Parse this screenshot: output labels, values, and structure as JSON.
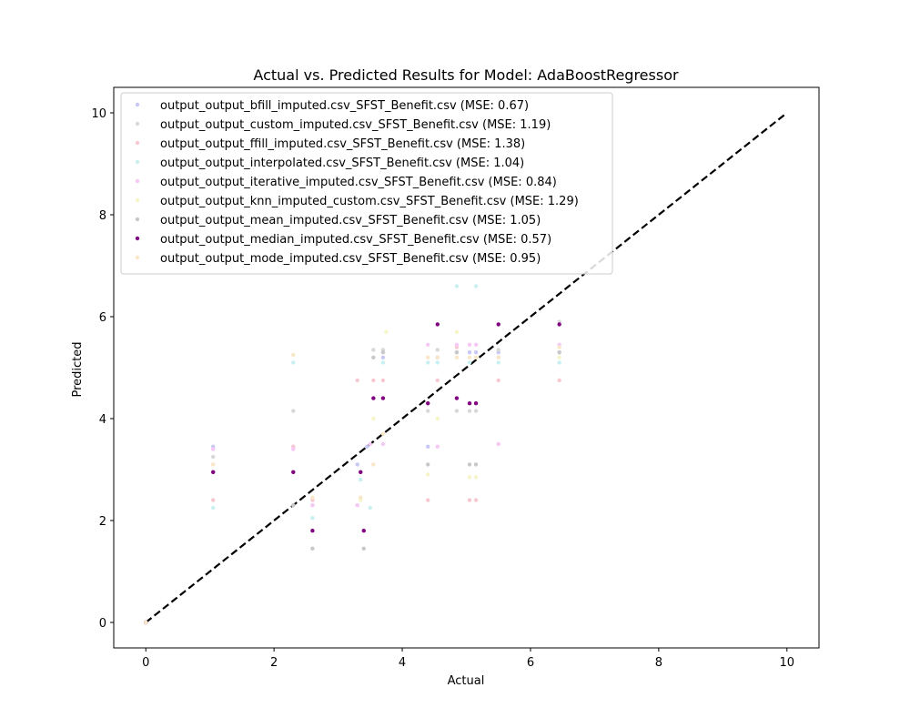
{
  "chart_data": {
    "type": "scatter",
    "title": "Actual vs. Predicted Results for Model: AdaBoostRegressor",
    "xlabel": "Actual",
    "ylabel": "Predicted",
    "xlim": [
      -0.5,
      10.5
    ],
    "ylim": [
      -0.5,
      10.5
    ],
    "xticks": [
      0,
      2,
      4,
      6,
      8,
      10
    ],
    "yticks": [
      0,
      2,
      4,
      6,
      8,
      10
    ],
    "grid": false,
    "legend_position": "upper-left",
    "reference_line": {
      "x": [
        0,
        10
      ],
      "y": [
        0,
        10
      ],
      "style": "dashed",
      "color": "#000000"
    },
    "series": [
      {
        "name": "output_output_bfill_imputed.csv_SFST_Benefit.csv (MSE: 0.67)",
        "color": "#c8c8f5",
        "x": [
          0,
          1.05,
          2.3,
          3.3,
          3.45,
          3.7,
          4.4,
          4.55,
          4.85,
          5.05,
          5.15,
          5.5,
          6.45
        ],
        "y": [
          0,
          3.45,
          3.45,
          3.1,
          3.45,
          5.2,
          3.45,
          5.2,
          5.3,
          5.3,
          5.3,
          5.3,
          5.3
        ]
      },
      {
        "name": "output_output_custom_imputed.csv_SFST_Benefit.csv (MSE: 1.19)",
        "color": "#d8d8d8",
        "x": [
          0,
          1.05,
          2.3,
          2.6,
          3.35,
          3.55,
          3.7,
          4.4,
          4.55,
          4.85,
          5.05,
          5.15,
          5.5,
          6.45
        ],
        "y": [
          0,
          3.25,
          4.15,
          2.3,
          2.95,
          5.35,
          5.35,
          4.15,
          5.35,
          4.15,
          4.15,
          4.15,
          5.35,
          5.9
        ]
      },
      {
        "name": "output_output_ffill_imputed.csv_SFST_Benefit.csv (MSE: 1.38)",
        "color": "#f7c8d2",
        "x": [
          0,
          1.05,
          2.3,
          2.6,
          3.3,
          3.55,
          3.7,
          4.4,
          4.55,
          4.85,
          5.05,
          5.15,
          5.5,
          6.45
        ],
        "y": [
          0,
          2.4,
          3.45,
          2.4,
          4.75,
          4.75,
          4.75,
          2.4,
          4.75,
          5.4,
          2.4,
          2.4,
          4.75,
          4.75
        ]
      },
      {
        "name": "output_output_interpolated.csv_SFST_Benefit.csv (MSE: 1.04)",
        "color": "#c8f0f0",
        "x": [
          0,
          1.05,
          2.3,
          2.6,
          3.35,
          3.5,
          3.7,
          4.4,
          4.55,
          4.85,
          5.05,
          5.15,
          5.5,
          6.45
        ],
        "y": [
          0,
          2.25,
          5.1,
          2.05,
          2.8,
          2.25,
          5.1,
          5.1,
          5.1,
          6.6,
          5.1,
          6.6,
          5.1,
          5.1
        ]
      },
      {
        "name": "output_output_iterative_imputed.csv_SFST_Benefit.csv (MSE: 0.84)",
        "color": "#f5c8f5",
        "x": [
          0,
          1.05,
          2.3,
          2.6,
          3.3,
          3.5,
          3.7,
          4.4,
          4.55,
          4.85,
          5.05,
          5.15,
          5.5,
          6.45
        ],
        "y": [
          0,
          3.4,
          3.4,
          2.3,
          2.3,
          3.5,
          3.5,
          5.45,
          3.45,
          5.45,
          5.45,
          5.45,
          3.5,
          5.45
        ]
      },
      {
        "name": "output_output_knn_imputed_custom.csv_SFST_Benefit.csv (MSE: 1.29)",
        "color": "#f5f5c8",
        "x": [
          0,
          1.05,
          2.3,
          2.6,
          3.35,
          3.55,
          3.75,
          4.4,
          4.55,
          4.85,
          5.05,
          5.15,
          5.5,
          6.45
        ],
        "y": [
          0,
          3.1,
          2.95,
          2.45,
          2.4,
          4.0,
          5.7,
          2.9,
          4.0,
          5.7,
          2.85,
          2.85,
          5.2,
          5.2
        ]
      },
      {
        "name": "output_output_mean_imputed.csv_SFST_Benefit.csv (MSE: 1.05)",
        "color": "#c8c8c8",
        "x": [
          0,
          1.05,
          2.3,
          2.6,
          3.4,
          3.55,
          3.7,
          4.4,
          4.55,
          4.85,
          5.05,
          5.15,
          5.5,
          6.45
        ],
        "y": [
          0,
          2.95,
          2.3,
          1.45,
          1.45,
          5.2,
          5.3,
          3.1,
          5.2,
          5.3,
          3.1,
          3.1,
          5.2,
          5.3
        ]
      },
      {
        "name": "output_output_median_imputed.csv_SFST_Benefit.csv (MSE: 0.57)",
        "color": "#800080",
        "x": [
          0,
          1.05,
          2.3,
          2.6,
          3.35,
          3.4,
          3.55,
          3.7,
          4.4,
          4.55,
          4.85,
          5.05,
          5.15,
          5.5,
          6.45
        ],
        "y": [
          0,
          2.95,
          2.95,
          1.8,
          2.95,
          1.8,
          4.4,
          4.4,
          4.3,
          5.85,
          4.4,
          4.3,
          4.3,
          5.85,
          5.85
        ]
      },
      {
        "name": "output_output_mode_imputed.csv_SFST_Benefit.csv (MSE: 0.95)",
        "color": "#fae6c8",
        "x": [
          0,
          1.05,
          2.3,
          2.6,
          3.35,
          3.55,
          3.7,
          4.4,
          4.55,
          4.85,
          5.05,
          5.15,
          5.5,
          6.45
        ],
        "y": [
          0,
          3.1,
          5.25,
          2.45,
          2.45,
          3.1,
          3.7,
          5.2,
          5.2,
          5.2,
          5.2,
          5.2,
          5.2,
          5.4
        ]
      }
    ]
  }
}
